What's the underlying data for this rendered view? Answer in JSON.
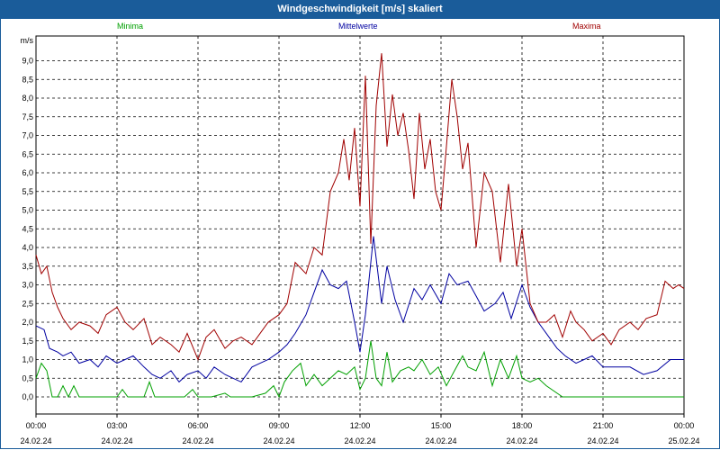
{
  "title": "Windgeschwindigkeit [m/s] skaliert",
  "colors": {
    "titlebar": "#1a5c9a",
    "min": "#00a000",
    "mean": "#0000a0",
    "max": "#a00000"
  },
  "chart_data": {
    "type": "line",
    "title": "Windgeschwindigkeit [m/s] skaliert",
    "ylabel": "m/s",
    "ylim": [
      0,
      9.5
    ],
    "yticks": [
      "0,0",
      "0,5",
      "1,0",
      "1,5",
      "2,0",
      "2,5",
      "3,0",
      "3,5",
      "4,0",
      "4,5",
      "5,0",
      "5,5",
      "6,0",
      "6,5",
      "7,0",
      "7,5",
      "8,0",
      "8,5",
      "9,0"
    ],
    "xlim": [
      0,
      24
    ],
    "xticks": [
      {
        "time": "00:00",
        "date": "24.02.24"
      },
      {
        "time": "03:00",
        "date": "24.02.24"
      },
      {
        "time": "06:00",
        "date": "24.02.24"
      },
      {
        "time": "09:00",
        "date": "24.02.24"
      },
      {
        "time": "12:00",
        "date": "24.02.24"
      },
      {
        "time": "15:00",
        "date": "24.02.24"
      },
      {
        "time": "18:00",
        "date": "24.02.24"
      },
      {
        "time": "21:00",
        "date": "24.02.24"
      },
      {
        "time": "00:00",
        "date": "25.02.24"
      }
    ],
    "grid": true,
    "series": [
      {
        "name": "Minima",
        "color": "#00a000",
        "x": [
          0,
          0.2,
          0.4,
          0.6,
          0.8,
          1.0,
          1.2,
          1.4,
          1.6,
          2.0,
          3.0,
          3.2,
          3.4,
          4.0,
          4.2,
          4.4,
          5.0,
          5.5,
          5.8,
          6.0,
          6.5,
          7.0,
          7.2,
          7.5,
          8.0,
          8.5,
          8.8,
          9.0,
          9.2,
          9.5,
          9.8,
          10.0,
          10.3,
          10.6,
          10.9,
          11.2,
          11.5,
          11.8,
          12.0,
          12.2,
          12.4,
          12.6,
          12.8,
          13.0,
          13.2,
          13.5,
          13.8,
          14.0,
          14.3,
          14.6,
          14.9,
          15.2,
          15.5,
          15.8,
          16.0,
          16.3,
          16.6,
          16.9,
          17.2,
          17.5,
          17.8,
          18.0,
          18.3,
          18.6,
          18.9,
          19.5,
          20.0,
          21.0,
          22.0,
          23.0,
          24.0
        ],
        "y": [
          0.5,
          0.9,
          0.7,
          0,
          0,
          0.3,
          0,
          0.3,
          0,
          0,
          0,
          0.2,
          0,
          0,
          0.4,
          0,
          0,
          0,
          0.2,
          0,
          0,
          0.1,
          0,
          0,
          0,
          0.1,
          0.3,
          0,
          0.4,
          0.7,
          0.9,
          0.3,
          0.6,
          0.3,
          0.5,
          0.7,
          0.6,
          0.8,
          0.2,
          0.5,
          1.5,
          0.5,
          0.3,
          1.2,
          0.4,
          0.7,
          0.8,
          0.7,
          1.0,
          0.6,
          0.8,
          0.3,
          0.7,
          1.1,
          0.8,
          0.7,
          1.2,
          0.3,
          1.0,
          0.5,
          1.1,
          0.5,
          0.4,
          0.5,
          0.3,
          0,
          0,
          0,
          0,
          0,
          0
        ]
      },
      {
        "name": "Mittelwerte",
        "color": "#0000a0",
        "x": [
          0,
          0.3,
          0.5,
          0.8,
          1.0,
          1.3,
          1.6,
          2.0,
          2.3,
          2.6,
          3.0,
          3.3,
          3.6,
          4.0,
          4.3,
          4.6,
          5.0,
          5.3,
          5.6,
          6.0,
          6.3,
          6.6,
          7.0,
          7.3,
          7.6,
          8.0,
          8.3,
          8.6,
          9.0,
          9.3,
          9.6,
          10.0,
          10.3,
          10.6,
          10.9,
          11.2,
          11.5,
          11.8,
          12.0,
          12.2,
          12.5,
          12.8,
          13.0,
          13.3,
          13.6,
          14.0,
          14.3,
          14.6,
          15.0,
          15.3,
          15.6,
          16.0,
          16.3,
          16.6,
          17.0,
          17.3,
          17.6,
          18.0,
          18.3,
          18.6,
          19.0,
          19.3,
          19.6,
          20.0,
          20.3,
          20.6,
          21.0,
          21.5,
          22.0,
          22.5,
          23.0,
          23.5,
          24.0
        ],
        "y": [
          1.9,
          1.8,
          1.3,
          1.2,
          1.1,
          1.2,
          0.9,
          1.0,
          0.8,
          1.1,
          0.9,
          1.0,
          1.1,
          0.8,
          0.6,
          0.5,
          0.7,
          0.4,
          0.6,
          0.7,
          0.5,
          0.8,
          0.6,
          0.5,
          0.4,
          0.8,
          0.9,
          1.0,
          1.2,
          1.4,
          1.7,
          2.2,
          2.8,
          3.4,
          3.0,
          2.9,
          3.1,
          2.0,
          1.2,
          2.2,
          4.3,
          2.5,
          3.5,
          2.6,
          2.0,
          2.9,
          2.6,
          3.0,
          2.5,
          3.3,
          3.0,
          3.1,
          2.7,
          2.3,
          2.5,
          2.8,
          2.1,
          3.0,
          2.4,
          2.0,
          1.6,
          1.3,
          1.1,
          0.9,
          1.0,
          1.1,
          0.8,
          0.8,
          0.8,
          0.6,
          0.7,
          1.0,
          1.0
        ]
      },
      {
        "name": "Maxima",
        "color": "#a00000",
        "x": [
          0,
          0.2,
          0.4,
          0.6,
          0.8,
          1.0,
          1.3,
          1.6,
          2.0,
          2.3,
          2.6,
          3.0,
          3.3,
          3.6,
          4.0,
          4.3,
          4.6,
          5.0,
          5.3,
          5.6,
          6.0,
          6.3,
          6.6,
          7.0,
          7.3,
          7.6,
          8.0,
          8.3,
          8.6,
          9.0,
          9.3,
          9.6,
          10.0,
          10.3,
          10.6,
          10.9,
          11.2,
          11.4,
          11.6,
          11.8,
          12.0,
          12.2,
          12.4,
          12.6,
          12.8,
          13.0,
          13.2,
          13.4,
          13.6,
          13.8,
          14.0,
          14.2,
          14.4,
          14.6,
          14.8,
          15.0,
          15.2,
          15.4,
          15.6,
          15.8,
          16.0,
          16.3,
          16.6,
          16.9,
          17.2,
          17.5,
          17.8,
          18.0,
          18.3,
          18.6,
          18.9,
          19.2,
          19.5,
          19.8,
          20.0,
          20.3,
          20.6,
          21.0,
          21.3,
          21.6,
          22.0,
          22.3,
          22.6,
          23.0,
          23.3,
          23.6,
          23.8,
          24.0
        ],
        "y": [
          3.8,
          3.3,
          3.5,
          2.8,
          2.4,
          2.1,
          1.8,
          2.0,
          1.9,
          1.7,
          2.2,
          2.4,
          2.0,
          1.8,
          2.1,
          1.4,
          1.6,
          1.4,
          1.2,
          1.7,
          1.0,
          1.6,
          1.8,
          1.3,
          1.5,
          1.6,
          1.4,
          1.7,
          2.0,
          2.2,
          2.5,
          3.6,
          3.3,
          4.0,
          3.8,
          5.5,
          6.0,
          6.9,
          5.8,
          7.2,
          5.1,
          8.6,
          4.1,
          7.8,
          9.2,
          6.7,
          8.1,
          7.0,
          7.6,
          6.6,
          5.3,
          7.6,
          6.1,
          6.9,
          5.5,
          5.0,
          6.7,
          8.5,
          7.5,
          6.1,
          6.8,
          4.0,
          6.0,
          5.5,
          3.6,
          5.7,
          3.5,
          4.5,
          2.5,
          2.0,
          2.0,
          2.2,
          1.6,
          2.3,
          2.0,
          1.8,
          1.5,
          1.7,
          1.4,
          1.8,
          2.0,
          1.8,
          2.1,
          2.2,
          3.1,
          2.9,
          3.0,
          2.9
        ]
      }
    ]
  }
}
